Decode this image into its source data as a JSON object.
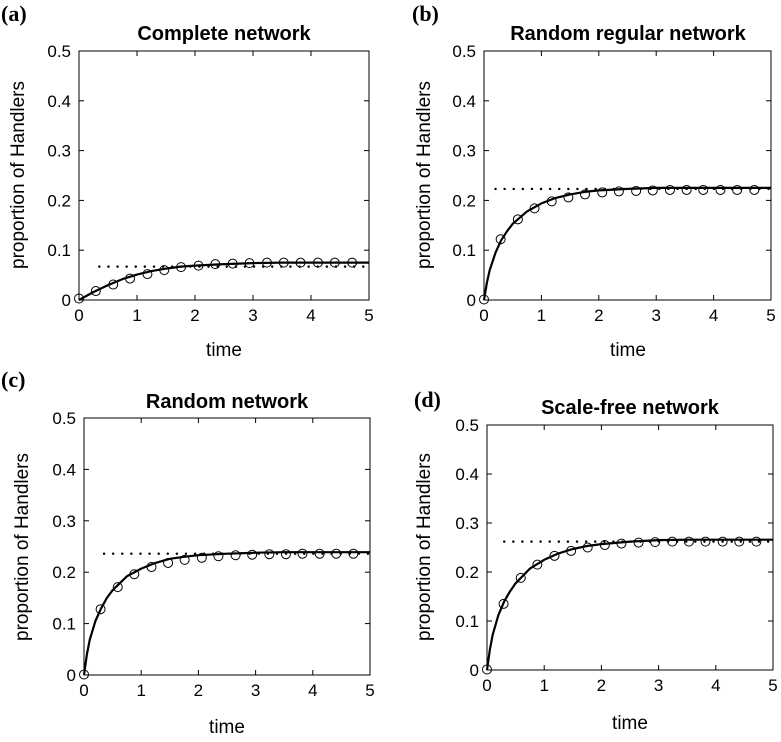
{
  "chart_data": [
    {
      "type": "line",
      "panel_label": "(a)",
      "title": "Complete network",
      "xlabel": "time",
      "ylabel": "proportion of Handlers",
      "xlim": [
        0,
        5
      ],
      "ylim": [
        0,
        0.5
      ],
      "x_ticks": [
        "0",
        "1",
        "2",
        "3",
        "4",
        "5"
      ],
      "y_ticks": [
        "0",
        "0.1",
        "0.2",
        "0.3",
        "0.4",
        "0.5"
      ],
      "grid": false,
      "series": [
        {
          "style": "solid",
          "x": [
            0,
            0.25,
            0.5,
            0.75,
            1.0,
            1.25,
            1.5,
            1.75,
            2.0,
            2.5,
            3.0,
            3.5,
            4.0,
            4.5,
            5.0
          ],
          "y": [
            0,
            0.016,
            0.03,
            0.042,
            0.051,
            0.058,
            0.063,
            0.067,
            0.069,
            0.072,
            0.074,
            0.075,
            0.075,
            0.075,
            0.075
          ]
        },
        {
          "style": "dotted",
          "x": [
            0.35,
            5.0
          ],
          "y": [
            0.067,
            0.067
          ]
        },
        {
          "style": "circles",
          "x": [
            0,
            0.29,
            0.59,
            0.88,
            1.18,
            1.47,
            1.76,
            2.06,
            2.35,
            2.65,
            2.94,
            3.24,
            3.53,
            3.82,
            4.12,
            4.41,
            4.71
          ],
          "y": [
            0.003,
            0.018,
            0.031,
            0.043,
            0.052,
            0.06,
            0.066,
            0.069,
            0.072,
            0.073,
            0.074,
            0.075,
            0.075,
            0.075,
            0.075,
            0.075,
            0.075
          ]
        }
      ]
    },
    {
      "type": "line",
      "panel_label": "(b)",
      "title": "Random regular network",
      "xlabel": "time",
      "ylabel": "proportion of Handlers",
      "xlim": [
        0,
        5
      ],
      "ylim": [
        0,
        0.5
      ],
      "x_ticks": [
        "0",
        "1",
        "2",
        "3",
        "4",
        "5"
      ],
      "y_ticks": [
        "0",
        "0.1",
        "0.2",
        "0.3",
        "0.4",
        "0.5"
      ],
      "grid": false,
      "series": [
        {
          "style": "solid",
          "x": [
            0,
            0.05,
            0.1,
            0.2,
            0.3,
            0.4,
            0.5,
            0.75,
            1.0,
            1.25,
            1.5,
            1.75,
            2.0,
            2.5,
            3.0,
            3.5,
            4.0,
            4.5,
            5.0
          ],
          "y": [
            0,
            0.035,
            0.06,
            0.095,
            0.12,
            0.138,
            0.153,
            0.178,
            0.194,
            0.205,
            0.212,
            0.217,
            0.22,
            0.223,
            0.225,
            0.225,
            0.225,
            0.225,
            0.225
          ]
        },
        {
          "style": "dotted",
          "x": [
            0.2,
            5.0
          ],
          "y": [
            0.223,
            0.223
          ]
        },
        {
          "style": "circles",
          "x": [
            0,
            0.29,
            0.59,
            0.88,
            1.18,
            1.47,
            1.76,
            2.06,
            2.35,
            2.65,
            2.94,
            3.24,
            3.53,
            3.82,
            4.12,
            4.41,
            4.71
          ],
          "y": [
            0.001,
            0.122,
            0.162,
            0.184,
            0.198,
            0.206,
            0.212,
            0.216,
            0.218,
            0.219,
            0.22,
            0.221,
            0.221,
            0.221,
            0.221,
            0.221,
            0.221
          ]
        }
      ]
    },
    {
      "type": "line",
      "panel_label": "(c)",
      "title": "Random network",
      "xlabel": "time",
      "ylabel": "proportion of Handlers",
      "xlim": [
        0,
        5
      ],
      "ylim": [
        0,
        0.5
      ],
      "x_ticks": [
        "0",
        "1",
        "2",
        "3",
        "4",
        "5"
      ],
      "y_ticks": [
        "0",
        "0.1",
        "0.2",
        "0.3",
        "0.4",
        "0.5"
      ],
      "grid": false,
      "series": [
        {
          "style": "solid",
          "x": [
            0,
            0.05,
            0.1,
            0.2,
            0.3,
            0.4,
            0.5,
            0.75,
            1.0,
            1.25,
            1.5,
            1.75,
            2.0,
            2.5,
            3.0,
            3.5,
            4.0,
            4.5,
            5.0
          ],
          "y": [
            0,
            0.04,
            0.068,
            0.105,
            0.13,
            0.15,
            0.165,
            0.192,
            0.207,
            0.218,
            0.226,
            0.23,
            0.233,
            0.236,
            0.238,
            0.239,
            0.239,
            0.239,
            0.239
          ]
        },
        {
          "style": "dotted",
          "x": [
            0.35,
            5.0
          ],
          "y": [
            0.236,
            0.236
          ]
        },
        {
          "style": "circles",
          "x": [
            0,
            0.29,
            0.59,
            0.88,
            1.18,
            1.47,
            1.76,
            2.06,
            2.35,
            2.65,
            2.94,
            3.24,
            3.53,
            3.82,
            4.12,
            4.41,
            4.71
          ],
          "y": [
            0.001,
            0.128,
            0.171,
            0.196,
            0.21,
            0.218,
            0.224,
            0.228,
            0.231,
            0.233,
            0.234,
            0.235,
            0.235,
            0.236,
            0.236,
            0.236,
            0.236
          ]
        }
      ]
    },
    {
      "type": "line",
      "panel_label": "(d)",
      "title": "Scale-free network",
      "xlabel": "time",
      "ylabel": "proportion of Handlers",
      "xlim": [
        0,
        5
      ],
      "ylim": [
        0,
        0.5
      ],
      "x_ticks": [
        "0",
        "1",
        "2",
        "3",
        "4",
        "5"
      ],
      "y_ticks": [
        "0",
        "0.1",
        "0.2",
        "0.3",
        "0.4",
        "0.5"
      ],
      "grid": false,
      "series": [
        {
          "style": "solid",
          "x": [
            0,
            0.05,
            0.1,
            0.2,
            0.3,
            0.4,
            0.5,
            0.75,
            1.0,
            1.25,
            1.5,
            1.75,
            2.0,
            2.5,
            3.0,
            3.5,
            4.0,
            4.5,
            5.0
          ],
          "y": [
            0,
            0.042,
            0.072,
            0.112,
            0.14,
            0.16,
            0.177,
            0.207,
            0.225,
            0.238,
            0.247,
            0.253,
            0.257,
            0.262,
            0.265,
            0.266,
            0.266,
            0.266,
            0.266
          ]
        },
        {
          "style": "dotted",
          "x": [
            0.3,
            5.0
          ],
          "y": [
            0.262,
            0.262
          ]
        },
        {
          "style": "circles",
          "x": [
            0,
            0.29,
            0.59,
            0.88,
            1.18,
            1.47,
            1.76,
            2.06,
            2.35,
            2.65,
            2.94,
            3.24,
            3.53,
            3.82,
            4.12,
            4.41,
            4.71
          ],
          "y": [
            0.001,
            0.135,
            0.188,
            0.215,
            0.233,
            0.243,
            0.25,
            0.255,
            0.258,
            0.26,
            0.261,
            0.262,
            0.262,
            0.262,
            0.262,
            0.262,
            0.262
          ]
        }
      ]
    }
  ]
}
